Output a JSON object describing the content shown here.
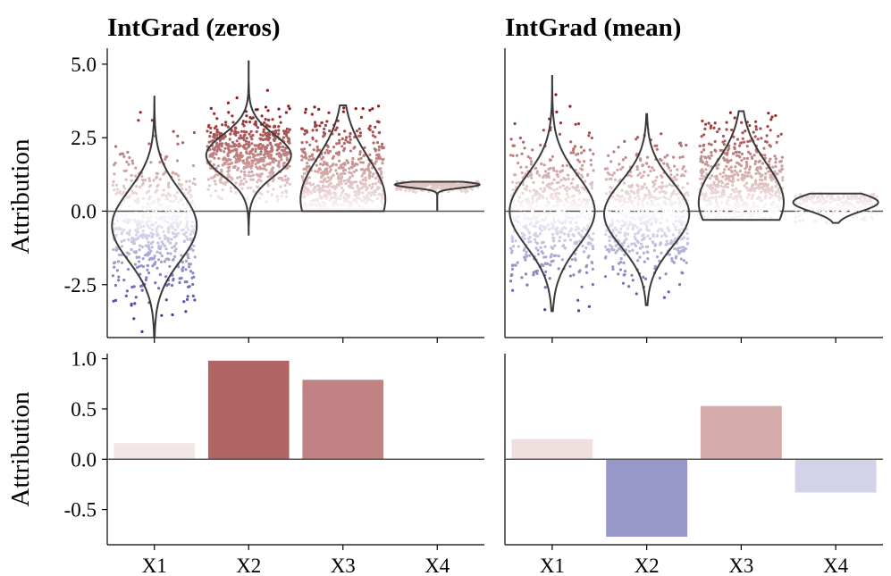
{
  "colors": {
    "pos_max": "#8b1a1a",
    "neg_max": "#3b3b9a",
    "neutral": "#ffffff"
  },
  "chart_data": [
    {
      "type": "violin",
      "title": "IntGrad (zeros)",
      "ylabel": "Attribution",
      "categories": [
        "X1",
        "X2",
        "X3",
        "X4"
      ],
      "yticks": [
        "-2.5",
        "0.0",
        "2.5",
        "5.0"
      ],
      "ylim": [
        -4.3,
        5.3
      ],
      "series": [
        {
          "cat": "X1",
          "min": -4.3,
          "max": 3.9,
          "center": -0.5,
          "spread": 1.2
        },
        {
          "cat": "X2",
          "min": -0.8,
          "max": 5.1,
          "center": 1.9,
          "spread": 0.7
        },
        {
          "cat": "X3",
          "min": 0.0,
          "max": 3.6,
          "center": 0.4,
          "spread": 1.4
        },
        {
          "cat": "X4",
          "min": 0.0,
          "max": 1.0,
          "center": 0.9,
          "spread": 0.1
        }
      ]
    },
    {
      "type": "violin",
      "title": "IntGrad (mean)",
      "categories": [
        "X1",
        "X2",
        "X3",
        "X4"
      ],
      "ylim": [
        -4.3,
        5.3
      ],
      "series": [
        {
          "cat": "X1",
          "min": -3.4,
          "max": 4.6,
          "center": 0.0,
          "spread": 1.2
        },
        {
          "cat": "X2",
          "min": -3.2,
          "max": 3.3,
          "center": -0.1,
          "spread": 1.1
        },
        {
          "cat": "X3",
          "min": -0.3,
          "max": 3.4,
          "center": 0.3,
          "spread": 1.3
        },
        {
          "cat": "X4",
          "min": -0.4,
          "max": 0.6,
          "center": 0.3,
          "spread": 0.3
        }
      ]
    },
    {
      "type": "bar",
      "ylabel": "Attribution",
      "categories": [
        "X1",
        "X2",
        "X3",
        "X4"
      ],
      "values": [
        0.16,
        0.98,
        0.79,
        0.0
      ],
      "yticks": [
        "-0.5",
        "0.0",
        "0.5",
        "1.0"
      ],
      "ylim": [
        -0.85,
        1.05
      ]
    },
    {
      "type": "bar",
      "categories": [
        "X1",
        "X2",
        "X3",
        "X4"
      ],
      "values": [
        0.2,
        -0.77,
        0.53,
        -0.33
      ],
      "ylim": [
        -0.85,
        1.05
      ]
    }
  ]
}
